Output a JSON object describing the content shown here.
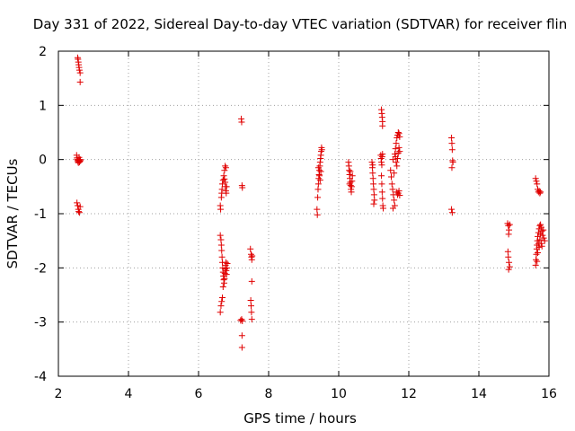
{
  "chart_data": {
    "type": "scatter",
    "title": "Day 331 of 2022, Sidereal Day-to-day VTEC variation (SDTVAR) for receiver flin",
    "xlabel": "GPS time / hours",
    "ylabel": "SDTVAR / TECUs",
    "xlim": [
      2,
      16
    ],
    "ylim": [
      -4,
      2
    ],
    "xticks": [
      2,
      4,
      6,
      8,
      10,
      12,
      14,
      16
    ],
    "yticks": [
      -4,
      -3,
      -2,
      -1,
      0,
      1,
      2
    ],
    "grid": true,
    "marker": "+",
    "color": "#e00000",
    "series": [
      {
        "name": "SDTVAR",
        "points": [
          [
            2.55,
            1.88
          ],
          [
            2.56,
            1.85
          ],
          [
            2.57,
            1.8
          ],
          [
            2.58,
            1.75
          ],
          [
            2.59,
            1.7
          ],
          [
            2.6,
            1.65
          ],
          [
            2.62,
            1.6
          ],
          [
            2.62,
            1.43
          ],
          [
            2.52,
            0.08
          ],
          [
            2.53,
            0.03
          ],
          [
            2.54,
            0.0
          ],
          [
            2.55,
            -0.02
          ],
          [
            2.56,
            -0.04
          ],
          [
            2.57,
            -0.06
          ],
          [
            2.58,
            -0.01
          ],
          [
            2.59,
            0.04
          ],
          [
            2.6,
            -0.05
          ],
          [
            2.61,
            -0.03
          ],
          [
            2.62,
            0.0
          ],
          [
            2.63,
            -0.02
          ],
          [
            2.53,
            -0.8
          ],
          [
            2.55,
            -0.85
          ],
          [
            2.57,
            -0.92
          ],
          [
            2.58,
            -0.96
          ],
          [
            2.6,
            -0.98
          ],
          [
            2.62,
            -0.87
          ],
          [
            6.62,
            -0.85
          ],
          [
            6.63,
            -0.92
          ],
          [
            6.65,
            -0.7
          ],
          [
            6.66,
            -0.62
          ],
          [
            6.67,
            -0.55
          ],
          [
            6.68,
            -0.45
          ],
          [
            6.7,
            -0.38
          ],
          [
            6.72,
            -0.3
          ],
          [
            6.74,
            -0.36
          ],
          [
            6.76,
            -0.42
          ],
          [
            6.77,
            -0.5
          ],
          [
            6.78,
            -0.58
          ],
          [
            6.79,
            -0.62
          ],
          [
            6.8,
            -0.5
          ],
          [
            6.76,
            -0.12
          ],
          [
            6.78,
            -0.15
          ],
          [
            6.74,
            -0.2
          ],
          [
            6.62,
            -1.4
          ],
          [
            6.64,
            -1.48
          ],
          [
            6.65,
            -1.58
          ],
          [
            6.66,
            -1.68
          ],
          [
            6.67,
            -1.8
          ],
          [
            6.68,
            -1.9
          ],
          [
            6.69,
            -2.0
          ],
          [
            6.7,
            -2.08
          ],
          [
            6.71,
            -2.15
          ],
          [
            6.72,
            -2.22
          ],
          [
            6.73,
            -2.28
          ],
          [
            6.74,
            -2.2
          ],
          [
            6.75,
            -2.1
          ],
          [
            6.76,
            -2.02
          ],
          [
            6.77,
            -1.95
          ],
          [
            6.78,
            -1.9
          ],
          [
            6.79,
            -2.05
          ],
          [
            6.8,
            -2.12
          ],
          [
            6.81,
            -2.0
          ],
          [
            6.82,
            -1.92
          ],
          [
            6.7,
            -2.35
          ],
          [
            6.68,
            -2.55
          ],
          [
            6.66,
            -2.62
          ],
          [
            6.64,
            -2.7
          ],
          [
            6.62,
            -2.82
          ],
          [
            7.22,
            0.75
          ],
          [
            7.23,
            0.69
          ],
          [
            7.24,
            -0.48
          ],
          [
            7.25,
            -0.52
          ],
          [
            7.2,
            -2.97
          ],
          [
            7.23,
            -2.95
          ],
          [
            7.25,
            -2.98
          ],
          [
            7.24,
            -3.25
          ],
          [
            7.24,
            -3.47
          ],
          [
            7.48,
            -1.65
          ],
          [
            7.5,
            -1.75
          ],
          [
            7.51,
            -1.8
          ],
          [
            7.52,
            -1.85
          ],
          [
            7.53,
            -1.78
          ],
          [
            7.52,
            -2.25
          ],
          [
            7.49,
            -2.6
          ],
          [
            7.5,
            -2.7
          ],
          [
            7.51,
            -2.82
          ],
          [
            7.52,
            -2.95
          ],
          [
            9.38,
            -0.92
          ],
          [
            9.39,
            -1.02
          ],
          [
            9.4,
            -0.7
          ],
          [
            9.41,
            -0.55
          ],
          [
            9.42,
            -0.45
          ],
          [
            9.43,
            -0.35
          ],
          [
            9.44,
            -0.28
          ],
          [
            9.45,
            -0.2
          ],
          [
            9.46,
            -0.12
          ],
          [
            9.47,
            -0.05
          ],
          [
            9.48,
            0.02
          ],
          [
            9.49,
            0.08
          ],
          [
            9.5,
            0.15
          ],
          [
            9.51,
            0.22
          ],
          [
            9.52,
            0.18
          ],
          [
            9.42,
            -0.15
          ],
          [
            9.45,
            -0.3
          ],
          [
            9.47,
            -0.38
          ],
          [
            9.49,
            -0.22
          ],
          [
            10.28,
            -0.05
          ],
          [
            10.29,
            -0.12
          ],
          [
            10.3,
            -0.2
          ],
          [
            10.31,
            -0.28
          ],
          [
            10.32,
            -0.35
          ],
          [
            10.33,
            -0.42
          ],
          [
            10.34,
            -0.48
          ],
          [
            10.35,
            -0.55
          ],
          [
            10.36,
            -0.6
          ],
          [
            10.37,
            -0.5
          ],
          [
            10.38,
            -0.4
          ],
          [
            10.39,
            -0.3
          ],
          [
            10.33,
            -0.22
          ],
          [
            10.31,
            -0.45
          ],
          [
            10.95,
            -0.05
          ],
          [
            10.96,
            -0.15
          ],
          [
            10.97,
            -0.25
          ],
          [
            10.98,
            -0.35
          ],
          [
            10.99,
            -0.45
          ],
          [
            11.0,
            -0.55
          ],
          [
            11.01,
            -0.65
          ],
          [
            11.02,
            -0.75
          ],
          [
            11.0,
            -0.82
          ],
          [
            10.97,
            -0.1
          ],
          [
            11.22,
            0.92
          ],
          [
            11.23,
            0.85
          ],
          [
            11.24,
            0.78
          ],
          [
            11.25,
            0.7
          ],
          [
            11.25,
            0.62
          ],
          [
            11.2,
            0.08
          ],
          [
            11.21,
            0.02
          ],
          [
            11.22,
            -0.05
          ],
          [
            11.23,
            -0.1
          ],
          [
            11.24,
            0.05
          ],
          [
            11.25,
            0.1
          ],
          [
            11.22,
            -0.3
          ],
          [
            11.23,
            -0.45
          ],
          [
            11.24,
            -0.6
          ],
          [
            11.25,
            -0.72
          ],
          [
            11.26,
            -0.85
          ],
          [
            11.27,
            -0.9
          ],
          [
            11.48,
            -0.2
          ],
          [
            11.5,
            -0.32
          ],
          [
            11.52,
            -0.45
          ],
          [
            11.54,
            -0.55
          ],
          [
            11.56,
            -0.65
          ],
          [
            11.58,
            -0.75
          ],
          [
            11.6,
            -0.85
          ],
          [
            11.55,
            -0.9
          ],
          [
            11.6,
            0.1
          ],
          [
            11.62,
            0.2
          ],
          [
            11.64,
            0.3
          ],
          [
            11.66,
            0.4
          ],
          [
            11.68,
            0.45
          ],
          [
            11.7,
            0.5
          ],
          [
            11.72,
            0.48
          ],
          [
            11.74,
            0.42
          ],
          [
            11.62,
            0.05
          ],
          [
            11.64,
            -0.05
          ],
          [
            11.66,
            -0.12
          ],
          [
            11.68,
            0.02
          ],
          [
            11.7,
            0.12
          ],
          [
            11.72,
            0.22
          ],
          [
            11.74,
            0.15
          ],
          [
            11.66,
            -0.6
          ],
          [
            11.68,
            -0.65
          ],
          [
            11.7,
            -0.62
          ],
          [
            11.72,
            -0.58
          ],
          [
            11.74,
            -0.66
          ],
          [
            11.55,
            0.0
          ],
          [
            11.58,
            -0.25
          ],
          [
            13.22,
            0.4
          ],
          [
            13.23,
            0.3
          ],
          [
            13.24,
            0.18
          ],
          [
            13.25,
            -0.02
          ],
          [
            13.26,
            -0.05
          ],
          [
            13.23,
            -0.15
          ],
          [
            13.22,
            -0.92
          ],
          [
            13.24,
            -0.98
          ],
          [
            14.82,
            -1.18
          ],
          [
            14.84,
            -1.22
          ],
          [
            14.86,
            -1.3
          ],
          [
            14.88,
            -1.2
          ],
          [
            14.85,
            -1.38
          ],
          [
            14.83,
            -1.7
          ],
          [
            14.84,
            -1.8
          ],
          [
            14.86,
            -1.9
          ],
          [
            14.88,
            -1.98
          ],
          [
            14.85,
            -2.03
          ],
          [
            15.62,
            -0.35
          ],
          [
            15.64,
            -0.4
          ],
          [
            15.66,
            -0.45
          ],
          [
            15.68,
            -0.55
          ],
          [
            15.7,
            -0.6
          ],
          [
            15.72,
            -0.58
          ],
          [
            15.74,
            -0.62
          ],
          [
            15.76,
            -0.6
          ],
          [
            15.62,
            -1.95
          ],
          [
            15.63,
            -1.85
          ],
          [
            15.64,
            -1.75
          ],
          [
            15.65,
            -1.65
          ],
          [
            15.66,
            -1.58
          ],
          [
            15.67,
            -1.5
          ],
          [
            15.68,
            -1.42
          ],
          [
            15.7,
            -1.35
          ],
          [
            15.72,
            -1.28
          ],
          [
            15.74,
            -1.22
          ],
          [
            15.76,
            -1.2
          ],
          [
            15.78,
            -1.25
          ],
          [
            15.8,
            -1.32
          ],
          [
            15.82,
            -1.4
          ],
          [
            15.85,
            -1.45
          ],
          [
            15.88,
            -1.5
          ],
          [
            15.7,
            -1.55
          ],
          [
            15.72,
            -1.62
          ],
          [
            15.74,
            -1.48
          ],
          [
            15.76,
            -1.38
          ],
          [
            15.78,
            -1.55
          ],
          [
            15.8,
            -1.6
          ],
          [
            15.66,
            -1.88
          ],
          [
            15.68,
            -1.72
          ],
          [
            15.84,
            -1.3
          ]
        ]
      }
    ]
  }
}
